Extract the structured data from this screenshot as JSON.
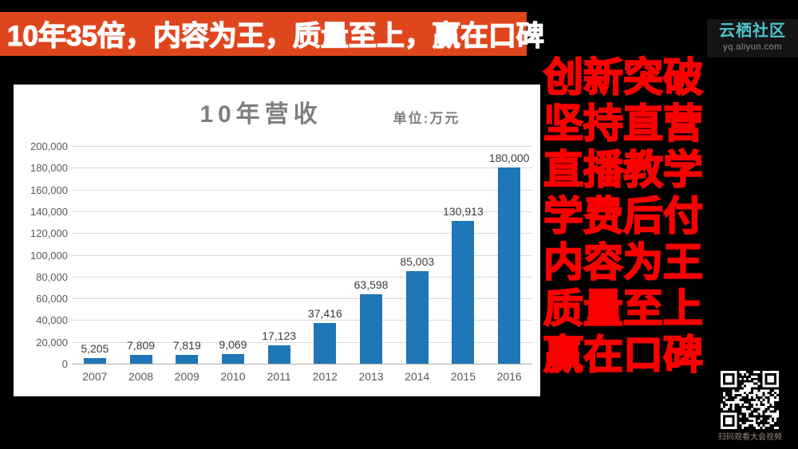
{
  "banner": {
    "text": "10年35倍，内容为王，质量至上，赢在口碑"
  },
  "logo": {
    "title": "云栖社区",
    "subtitle": "yq.aliyun.com"
  },
  "slogan": {
    "lines": [
      "创新突破",
      "坚持直营",
      "直播教学",
      "学费后付",
      "内容为王",
      "质量至上",
      "赢在口碑"
    ]
  },
  "chart": {
    "title": "10年营收",
    "unit_label": "单位:万元"
  },
  "chart_data": {
    "type": "bar",
    "title": "10年营收",
    "subtitle": "单位:万元",
    "categories": [
      "2007",
      "2008",
      "2009",
      "2010",
      "2011",
      "2012",
      "2013",
      "2014",
      "2015",
      "2016"
    ],
    "values": [
      5205,
      7809,
      7819,
      9069,
      17123,
      37416,
      63598,
      85003,
      130913,
      180000
    ],
    "value_labels": [
      "5,205",
      "7,809",
      "7,819",
      "9,069",
      "17,123",
      "37,416",
      "63,598",
      "85,003",
      "130,913",
      "180,000"
    ],
    "ylim": [
      0,
      200000
    ],
    "ytick_values": [
      0,
      20000,
      40000,
      60000,
      80000,
      100000,
      120000,
      140000,
      160000,
      180000,
      200000
    ],
    "ytick_labels": [
      "0",
      "20,000",
      "40,000",
      "60,000",
      "80,000",
      "100,000",
      "120,000",
      "140,000",
      "160,000",
      "180,000",
      "200,000"
    ],
    "xlabel": "",
    "ylabel": "",
    "grid": true,
    "legend": "none",
    "bar_color": "#2077B7"
  },
  "qr": {
    "caption": "扫码观看大会视频"
  }
}
